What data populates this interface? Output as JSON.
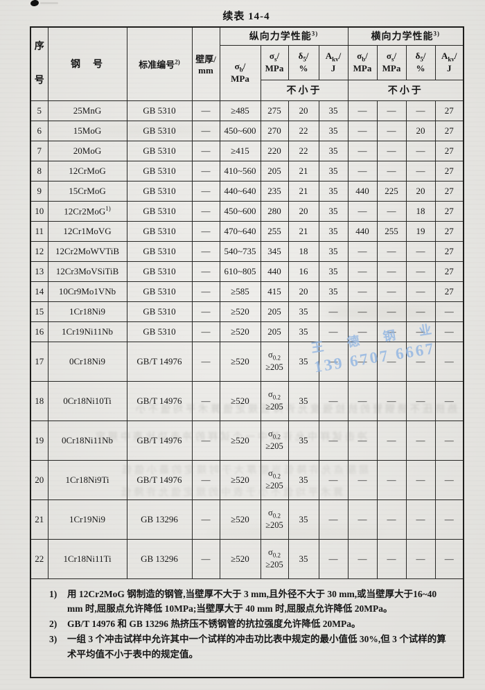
{
  "page": {
    "title": "续表 14-4"
  },
  "table": {
    "header": {
      "seq_l1": "序",
      "seq_l2": "号",
      "steel": "钢　号",
      "standard": "标准编号",
      "standard_sup": "2)",
      "wall_l1": "壁厚/",
      "wall_l2": "mm",
      "long_group": "纵向力学性能",
      "trans_group": "横向力学性能",
      "group_sup": "3)",
      "not_less": "不小于",
      "slash": "/",
      "cols": [
        {
          "sym": "σ",
          "sub": "b",
          "unit": "MPa"
        },
        {
          "sym": "σ",
          "sub": "s",
          "unit": "MPa"
        },
        {
          "sym": "δ",
          "sub": "5",
          "unit": "%"
        },
        {
          "sym": "A",
          "sub": "kv",
          "unit": "J"
        }
      ]
    },
    "rows": [
      {
        "n": "5",
        "steel": "25MnG",
        "std": "GB 5310",
        "wall": "—",
        "sb": "≥485",
        "ss": "275",
        "d5": "20",
        "akv": "35",
        "tsb": "—",
        "tss": "—",
        "td5": "—",
        "takv": "27"
      },
      {
        "n": "6",
        "steel": "15MoG",
        "std": "GB 5310",
        "wall": "—",
        "sb": "450~600",
        "ss": "270",
        "d5": "22",
        "akv": "35",
        "tsb": "—",
        "tss": "—",
        "td5": "20",
        "takv": "27"
      },
      {
        "n": "7",
        "steel": "20MoG",
        "std": "GB 5310",
        "wall": "—",
        "sb": "≥415",
        "ss": "220",
        "d5": "22",
        "akv": "35",
        "tsb": "—",
        "tss": "—",
        "td5": "—",
        "takv": "27"
      },
      {
        "n": "8",
        "steel": "12CrMoG",
        "std": "GB 5310",
        "wall": "—",
        "sb": "410~560",
        "ss": "205",
        "d5": "21",
        "akv": "35",
        "tsb": "—",
        "tss": "—",
        "td5": "—",
        "takv": "27"
      },
      {
        "n": "9",
        "steel": "15CrMoG",
        "std": "GB 5310",
        "wall": "—",
        "sb": "440~640",
        "ss": "235",
        "d5": "21",
        "akv": "35",
        "tsb": "440",
        "tss": "225",
        "td5": "20",
        "takv": "27"
      },
      {
        "n": "10",
        "steel": "12Cr2MoG",
        "sup": "1)",
        "std": "GB 5310",
        "wall": "—",
        "sb": "450~600",
        "ss": "280",
        "d5": "20",
        "akv": "35",
        "tsb": "—",
        "tss": "—",
        "td5": "18",
        "takv": "27"
      },
      {
        "n": "11",
        "steel": "12Cr1MoVG",
        "std": "GB 5310",
        "wall": "—",
        "sb": "470~640",
        "ss": "255",
        "d5": "21",
        "akv": "35",
        "tsb": "440",
        "tss": "255",
        "td5": "19",
        "takv": "27"
      },
      {
        "n": "12",
        "steel": "12Cr2MoWVTiB",
        "std": "GB 5310",
        "wall": "—",
        "sb": "540~735",
        "ss": "345",
        "d5": "18",
        "akv": "35",
        "tsb": "—",
        "tss": "—",
        "td5": "—",
        "takv": "27"
      },
      {
        "n": "13",
        "steel": "12Cr3MoVSiTiB",
        "std": "GB 5310",
        "wall": "—",
        "sb": "610~805",
        "ss": "440",
        "d5": "16",
        "akv": "35",
        "tsb": "—",
        "tss": "—",
        "td5": "—",
        "takv": "27"
      },
      {
        "n": "14",
        "steel": "10Cr9Mo1VNb",
        "std": "GB 5310",
        "wall": "—",
        "sb": "≥585",
        "ss": "415",
        "d5": "20",
        "akv": "35",
        "tsb": "—",
        "tss": "—",
        "td5": "—",
        "takv": "27"
      },
      {
        "n": "15",
        "steel": "1Cr18Ni9",
        "std": "GB 5310",
        "wall": "—",
        "sb": "≥520",
        "ss": "205",
        "d5": "35",
        "akv": "—",
        "tsb": "—",
        "tss": "—",
        "td5": "—",
        "takv": "—"
      },
      {
        "n": "16",
        "steel": "1Cr19Ni11Nb",
        "std": "GB 5310",
        "wall": "—",
        "sb": "≥520",
        "ss": "205",
        "d5": "35",
        "akv": "—",
        "tsb": "—",
        "tss": "—",
        "td5": "—",
        "takv": "—"
      },
      {
        "n": "17",
        "steel": "0Cr18Ni9",
        "std": "GB/T 14976",
        "wall": "—",
        "sb": "≥520",
        "ss": {
          "sym": "σ",
          "sub": "0.2",
          "val": "≥205"
        },
        "d5": "35",
        "akv": "—",
        "tsb": "—",
        "tss": "—",
        "td5": "—",
        "takv": "—"
      },
      {
        "n": "18",
        "steel": "0Cr18Ni10Ti",
        "std": "GB/T 14976",
        "wall": "—",
        "sb": "≥520",
        "ss": {
          "sym": "σ",
          "sub": "0.2",
          "val": "≥205"
        },
        "d5": "35",
        "akv": "—",
        "tsb": "—",
        "tss": "—",
        "td5": "—",
        "takv": "—"
      },
      {
        "n": "19",
        "steel": "0Cr18Ni11Nb",
        "std": "GB/T 14976",
        "wall": "—",
        "sb": "≥520",
        "ss": {
          "sym": "σ",
          "sub": "0.2",
          "val": "≥205"
        },
        "d5": "35",
        "akv": "—",
        "tsb": "—",
        "tss": "—",
        "td5": "—",
        "takv": "—"
      },
      {
        "n": "20",
        "steel": "1Cr18Ni9Ti",
        "std": "GB/T 14976",
        "wall": "—",
        "sb": "≥520",
        "ss": {
          "sym": "σ",
          "sub": "0.2",
          "val": "≥205"
        },
        "d5": "35",
        "akv": "—",
        "tsb": "—",
        "tss": "—",
        "td5": "—",
        "takv": "—"
      },
      {
        "n": "21",
        "steel": "1Cr19Ni9",
        "std": "GB 13296",
        "wall": "—",
        "sb": "≥520",
        "ss": {
          "sym": "σ",
          "sub": "0.2",
          "val": "≥205"
        },
        "d5": "35",
        "akv": "—",
        "tsb": "—",
        "tss": "—",
        "td5": "—",
        "takv": "—"
      },
      {
        "n": "22",
        "steel": "1Cr18Ni11Ti",
        "std": "GB 13296",
        "wall": "—",
        "sb": "≥520",
        "ss": {
          "sym": "σ",
          "sub": "0.2",
          "val": "≥205"
        },
        "d5": "35",
        "akv": "—",
        "tsb": "—",
        "tss": "—",
        "td5": "—",
        "takv": "—"
      }
    ],
    "footnotes": [
      {
        "marker": "1)",
        "text": "用 12Cr2MoG 钢制造的钢管,当壁厚不大于 3 mm,且外径不大于 30 mm,或当壁厚大于16~40 mm 时,屈服点允许降低 10MPa;当壁厚大于 40 mm 时,屈服点允许降低 20MPa。"
      },
      {
        "marker": "2)",
        "text": "GB/T 14976 和 GB 13296 热挤压不锈钢管的抗拉强度允许降低 20MPa。"
      },
      {
        "marker": "3)",
        "text": "一组 3 个冲击试样中允许其中一个试样的冲击功比表中规定的最小值低 30%,但 3 个试样的算术平均值不小于表中的规定值。"
      }
    ]
  },
  "watermark": {
    "line1": "王 德 钢 业",
    "line2": "139 6707 6667",
    "color": "#8fb4e2"
  },
  "artifacts": {
    "bleedthrough": [
      "热挤压不锈钢管的抗拉强度允许降低规定值算术平均值不小",
      "冲击试样中允许其中一个试样的冲击功比表中规定",
      "屈服点允许降低当壁厚大于时规定的最小值低",
      "算术平均值不小于表中的规定值允许降低"
    ]
  }
}
